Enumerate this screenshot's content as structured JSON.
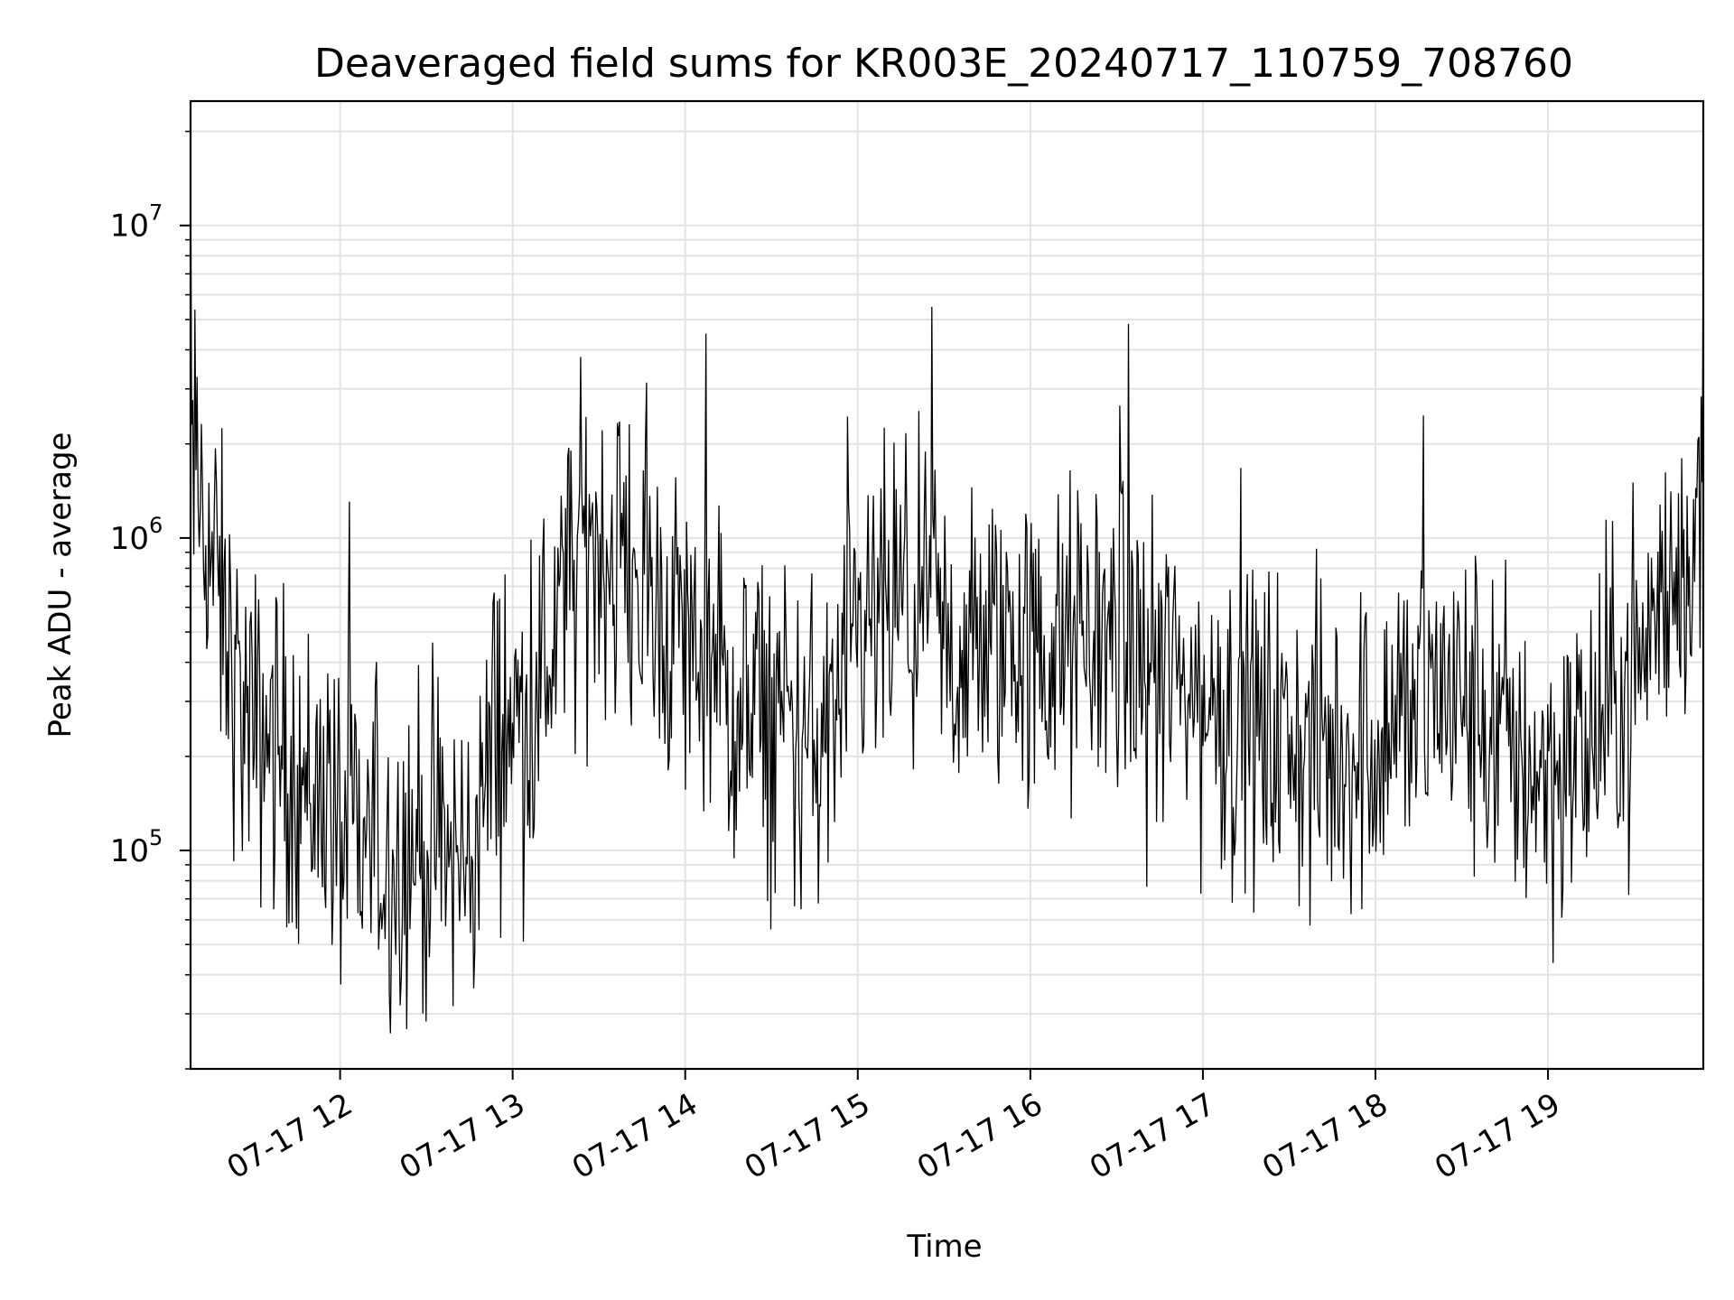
{
  "chart_data": {
    "type": "line",
    "title": "Deaveraged field sums for KR003E_20240717_110759_708760",
    "xlabel": "Time",
    "ylabel": "Peak ADU - average",
    "x_range": [
      "2024-07-17T11:08",
      "2024-07-17T19:54"
    ],
    "ylim": [
      20000,
      25000000
    ],
    "yscale": "log",
    "grid": true,
    "line_color": "#000000",
    "x_ticks": [
      {
        "label": "07-17 12",
        "value": "2024-07-17T12:00"
      },
      {
        "label": "07-17 13",
        "value": "2024-07-17T13:00"
      },
      {
        "label": "07-17 14",
        "value": "2024-07-17T14:00"
      },
      {
        "label": "07-17 15",
        "value": "2024-07-17T15:00"
      },
      {
        "label": "07-17 16",
        "value": "2024-07-17T16:00"
      },
      {
        "label": "07-17 17",
        "value": "2024-07-17T17:00"
      },
      {
        "label": "07-17 18",
        "value": "2024-07-17T18:00"
      },
      {
        "label": "07-17 19",
        "value": "2024-07-17T19:00"
      }
    ],
    "y_ticks": [
      {
        "base": "10",
        "exp": "5",
        "value": 100000
      },
      {
        "base": "10",
        "exp": "6",
        "value": 1000000
      },
      {
        "base": "10",
        "exp": "7",
        "value": 10000000
      }
    ],
    "series": [
      {
        "x": [
          "11:08",
          "11:10",
          "11:15",
          "11:20",
          "11:25",
          "11:30",
          "11:35",
          "11:40",
          "11:45",
          "11:50",
          "11:55",
          "12:00",
          "12:05",
          "12:10",
          "12:15",
          "12:20",
          "12:25",
          "12:30",
          "12:35",
          "12:40",
          "12:45",
          "12:50",
          "12:55",
          "13:00",
          "13:05",
          "13:10",
          "13:15",
          "13:20",
          "13:25",
          "13:30",
          "13:35",
          "13:40",
          "13:45",
          "13:50",
          "13:55",
          "14:00",
          "14:05",
          "14:10",
          "14:15",
          "14:20",
          "14:25",
          "14:30",
          "14:35",
          "14:40",
          "14:45",
          "14:50",
          "14:55",
          "15:00",
          "15:05",
          "15:10",
          "15:15",
          "15:20",
          "15:25",
          "15:30",
          "15:35",
          "15:40",
          "15:45",
          "15:50",
          "15:55",
          "16:00",
          "16:05",
          "16:10",
          "16:15",
          "16:20",
          "16:25",
          "16:30",
          "16:35",
          "16:40",
          "16:45",
          "16:50",
          "16:55",
          "17:00",
          "17:05",
          "17:10",
          "17:15",
          "17:20",
          "17:25",
          "17:30",
          "17:35",
          "17:40",
          "17:45",
          "17:50",
          "17:55",
          "18:00",
          "18:05",
          "18:10",
          "18:15",
          "18:20",
          "18:25",
          "18:30",
          "18:35",
          "18:40",
          "18:45",
          "18:50",
          "18:55",
          "19:00",
          "19:05",
          "19:10",
          "19:15",
          "19:20",
          "19:25",
          "19:30",
          "19:35",
          "19:40",
          "19:45",
          "19:50",
          "19:54"
        ],
        "y": [
          1800000,
          1500000,
          900000,
          500000,
          300000,
          220000,
          250000,
          200000,
          180000,
          150000,
          170000,
          110000,
          105000,
          100000,
          100000,
          95000,
          110000,
          100000,
          100000,
          90000,
          95000,
          150000,
          260000,
          250000,
          280000,
          350000,
          500000,
          700000,
          900000,
          1000000,
          900000,
          800000,
          700000,
          600000,
          550000,
          500000,
          420000,
          360000,
          300000,
          250000,
          270000,
          260000,
          250000,
          230000,
          210000,
          240000,
          300000,
          420000,
          500000,
          560000,
          600000,
          560000,
          500000,
          450000,
          420000,
          420000,
          450000,
          500000,
          480000,
          420000,
          400000,
          420000,
          450000,
          480000,
          500000,
          460000,
          420000,
          400000,
          380000,
          350000,
          330000,
          300000,
          280000,
          260000,
          250000,
          240000,
          230000,
          220000,
          210000,
          200000,
          200000,
          210000,
          220000,
          230000,
          250000,
          280000,
          300000,
          320000,
          310000,
          290000,
          270000,
          250000,
          220000,
          200000,
          190000,
          180000,
          190000,
          200000,
          220000,
          260000,
          320000,
          380000,
          480000,
          620000,
          780000,
          960000,
          1100000
        ]
      }
    ]
  }
}
